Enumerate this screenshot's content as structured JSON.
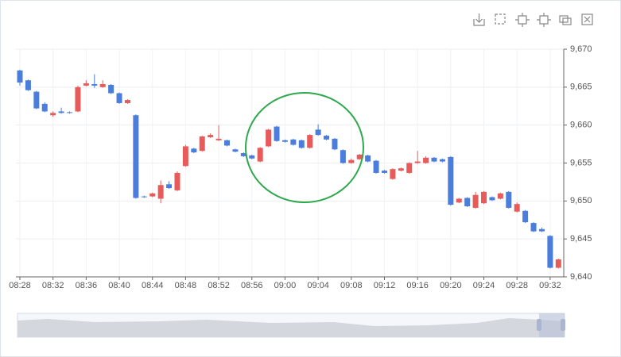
{
  "chart_data": {
    "type": "candlestick",
    "categories": [
      "08:28",
      null,
      null,
      null,
      "08:32",
      null,
      null,
      null,
      "08:36",
      null,
      null,
      null,
      "08:40",
      null,
      null,
      null,
      "08:44",
      null,
      null,
      null,
      "08:48",
      null,
      null,
      null,
      "08:52",
      null,
      null,
      null,
      "08:56",
      null,
      null,
      null,
      "09:00",
      null,
      null,
      null,
      "09:04",
      null,
      null,
      null,
      "09:08",
      null,
      null,
      null,
      "09:12",
      null,
      null,
      null,
      "09:16",
      null,
      null,
      null,
      "09:20",
      null,
      null,
      null,
      "09:24",
      null,
      null,
      null,
      "09:28",
      null,
      null,
      null,
      "09:32",
      null
    ],
    "open": [
      9667.2,
      9665.9,
      9664.4,
      9662.8,
      9661.3,
      9661.8,
      9661.7,
      9661.8,
      9665.2,
      9665.4,
      9665.0,
      9665.3,
      9664.2,
      9662.9,
      9661.3,
      9650.6,
      9650.6,
      9650.3,
      9652.2,
      9651.4,
      9654.6,
      9656.9,
      9656.6,
      9658.4,
      9658.0,
      9658.0,
      9656.8,
      9656.3,
      9656.0,
      9655.2,
      9657.2,
      9659.8,
      9658.0,
      9658.1,
      9658.0,
      9657.0,
      9659.4,
      9658.6,
      9658.2,
      9656.7,
      9655.0,
      9655.5,
      9656.0,
      9655.3,
      9654.0,
      9652.9,
      9654.0,
      9653.7,
      9655.0,
      9655.0,
      9655.7,
      9655.5,
      9655.8,
      9649.8,
      9650.4,
      9649.1,
      9649.7,
      9650.5,
      9650.3,
      9651.2,
      9648.6,
      9648.7,
      9647.1,
      9646.3,
      9645.4,
      9641.2
    ],
    "close": [
      9665.6,
      9664.6,
      9662.2,
      9661.8,
      9661.6,
      9661.6,
      9661.6,
      9665.0,
      9665.5,
      9665.2,
      9665.4,
      9664.2,
      9662.9,
      9663.3,
      9650.4,
      9650.5,
      9651.0,
      9652.1,
      9651.7,
      9653.7,
      9657.2,
      9656.4,
      9658.5,
      9658.7,
      9658.2,
      9657.3,
      9656.5,
      9655.9,
      9655.6,
      9657.0,
      9659.4,
      9657.9,
      9657.8,
      9657.4,
      9657.0,
      9658.7,
      9658.7,
      9658.1,
      9656.8,
      9655.0,
      9655.4,
      9656.1,
      9655.2,
      9653.7,
      9653.7,
      9654.2,
      9654.3,
      9655.0,
      9655.2,
      9655.7,
      9655.2,
      9655.2,
      9649.5,
      9650.3,
      9649.3,
      9650.8,
      9651.2,
      9650.1,
      9651.0,
      9649.1,
      9649.6,
      9647.2,
      9646.0,
      9646.0,
      9641.2,
      9642.3
    ],
    "high": [
      9667.3,
      9666.0,
      9664.5,
      9663.0,
      9661.8,
      9662.3,
      9661.8,
      9665.2,
      9665.9,
      9666.7,
      9665.9,
      9665.4,
      9664.3,
      9663.4,
      9661.4,
      9650.7,
      9651.1,
      9652.7,
      9652.6,
      9653.9,
      9657.4,
      9657.0,
      9658.6,
      9658.9,
      9660.0,
      9658.1,
      9656.9,
      9656.4,
      9656.1,
      9657.1,
      9659.5,
      9659.9,
      9658.1,
      9658.2,
      9658.1,
      9658.8,
      9660.1,
      9658.7,
      9658.3,
      9656.8,
      9655.6,
      9656.2,
      9656.1,
      9655.4,
      9654.1,
      9654.3,
      9654.4,
      9655.1,
      9656.6,
      9655.9,
      9655.8,
      9655.6,
      9655.9,
      9650.4,
      9650.5,
      9651.2,
      9651.3,
      9650.6,
      9651.1,
      9651.3,
      9649.8,
      9648.8,
      9647.2,
      9646.5,
      9645.5,
      9642.4
    ],
    "low": [
      9665.2,
      9664.5,
      9662.1,
      9661.7,
      9661.1,
      9661.5,
      9661.5,
      9661.7,
      9665.1,
      9664.9,
      9664.9,
      9664.1,
      9662.8,
      9662.8,
      9650.3,
      9650.4,
      9650.5,
      9649.7,
      9651.6,
      9651.3,
      9654.5,
      9656.3,
      9656.5,
      9658.3,
      9657.9,
      9657.2,
      9656.4,
      9655.8,
      9655.5,
      9655.1,
      9657.1,
      9657.8,
      9657.7,
      9657.3,
      9656.9,
      9656.9,
      9658.6,
      9658.0,
      9656.7,
      9654.9,
      9654.9,
      9655.4,
      9655.1,
      9653.6,
      9653.6,
      9652.8,
      9653.9,
      9653.6,
      9654.9,
      9654.9,
      9655.1,
      9655.1,
      9649.4,
      9649.7,
      9649.2,
      9649.0,
      9649.6,
      9650.0,
      9650.2,
      9649.0,
      9648.5,
      9647.1,
      9645.9,
      9645.9,
      9641.1,
      9641.1
    ],
    "up_color": "#e85b5b",
    "down_color": "#4a7ddc",
    "ylim": [
      9640,
      9670
    ],
    "yticks": [
      {
        "value": 9640,
        "label": "9,640"
      },
      {
        "value": 9645,
        "label": "9,645"
      },
      {
        "value": 9650,
        "label": "9,650"
      },
      {
        "value": 9655,
        "label": "9,655"
      },
      {
        "value": 9660,
        "label": "9,660"
      },
      {
        "value": 9665,
        "label": "9,665"
      },
      {
        "value": 9670,
        "label": "9,670"
      }
    ],
    "grid": true
  }
}
